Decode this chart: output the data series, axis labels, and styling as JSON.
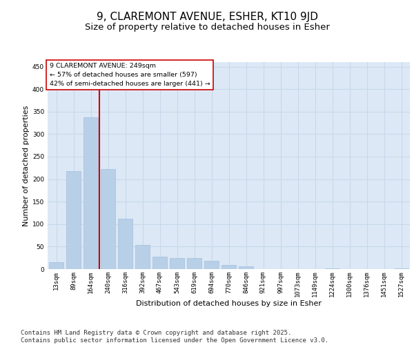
{
  "title": "9, CLAREMONT AVENUE, ESHER, KT10 9JD",
  "subtitle": "Size of property relative to detached houses in Esher",
  "xlabel": "Distribution of detached houses by size in Esher",
  "ylabel": "Number of detached properties",
  "categories": [
    "13sqm",
    "89sqm",
    "164sqm",
    "240sqm",
    "316sqm",
    "392sqm",
    "467sqm",
    "543sqm",
    "619sqm",
    "694sqm",
    "770sqm",
    "846sqm",
    "921sqm",
    "997sqm",
    "1073sqm",
    "1149sqm",
    "1224sqm",
    "1300sqm",
    "1376sqm",
    "1451sqm",
    "1527sqm"
  ],
  "values": [
    15,
    217,
    338,
    222,
    112,
    54,
    27,
    25,
    25,
    19,
    9,
    6,
    0,
    0,
    0,
    0,
    1,
    0,
    0,
    0,
    2
  ],
  "bar_color": "#b8cfe8",
  "bar_edge_color": "#9ab8d8",
  "grid_color": "#c8d8eb",
  "background_color": "#dce8f5",
  "vline_x_index": 3,
  "vline_color": "#cc0000",
  "annotation_text": "9 CLAREMONT AVENUE: 249sqm\n← 57% of detached houses are smaller (597)\n42% of semi-detached houses are larger (441) →",
  "annotation_box_color": "#ffffff",
  "annotation_box_edge": "#cc0000",
  "ylim": [
    0,
    460
  ],
  "yticks": [
    0,
    50,
    100,
    150,
    200,
    250,
    300,
    350,
    400,
    450
  ],
  "footer_text": "Contains HM Land Registry data © Crown copyright and database right 2025.\nContains public sector information licensed under the Open Government Licence v3.0.",
  "title_fontsize": 11,
  "subtitle_fontsize": 9.5,
  "label_fontsize": 8,
  "tick_fontsize": 6.5,
  "footer_fontsize": 6.5
}
